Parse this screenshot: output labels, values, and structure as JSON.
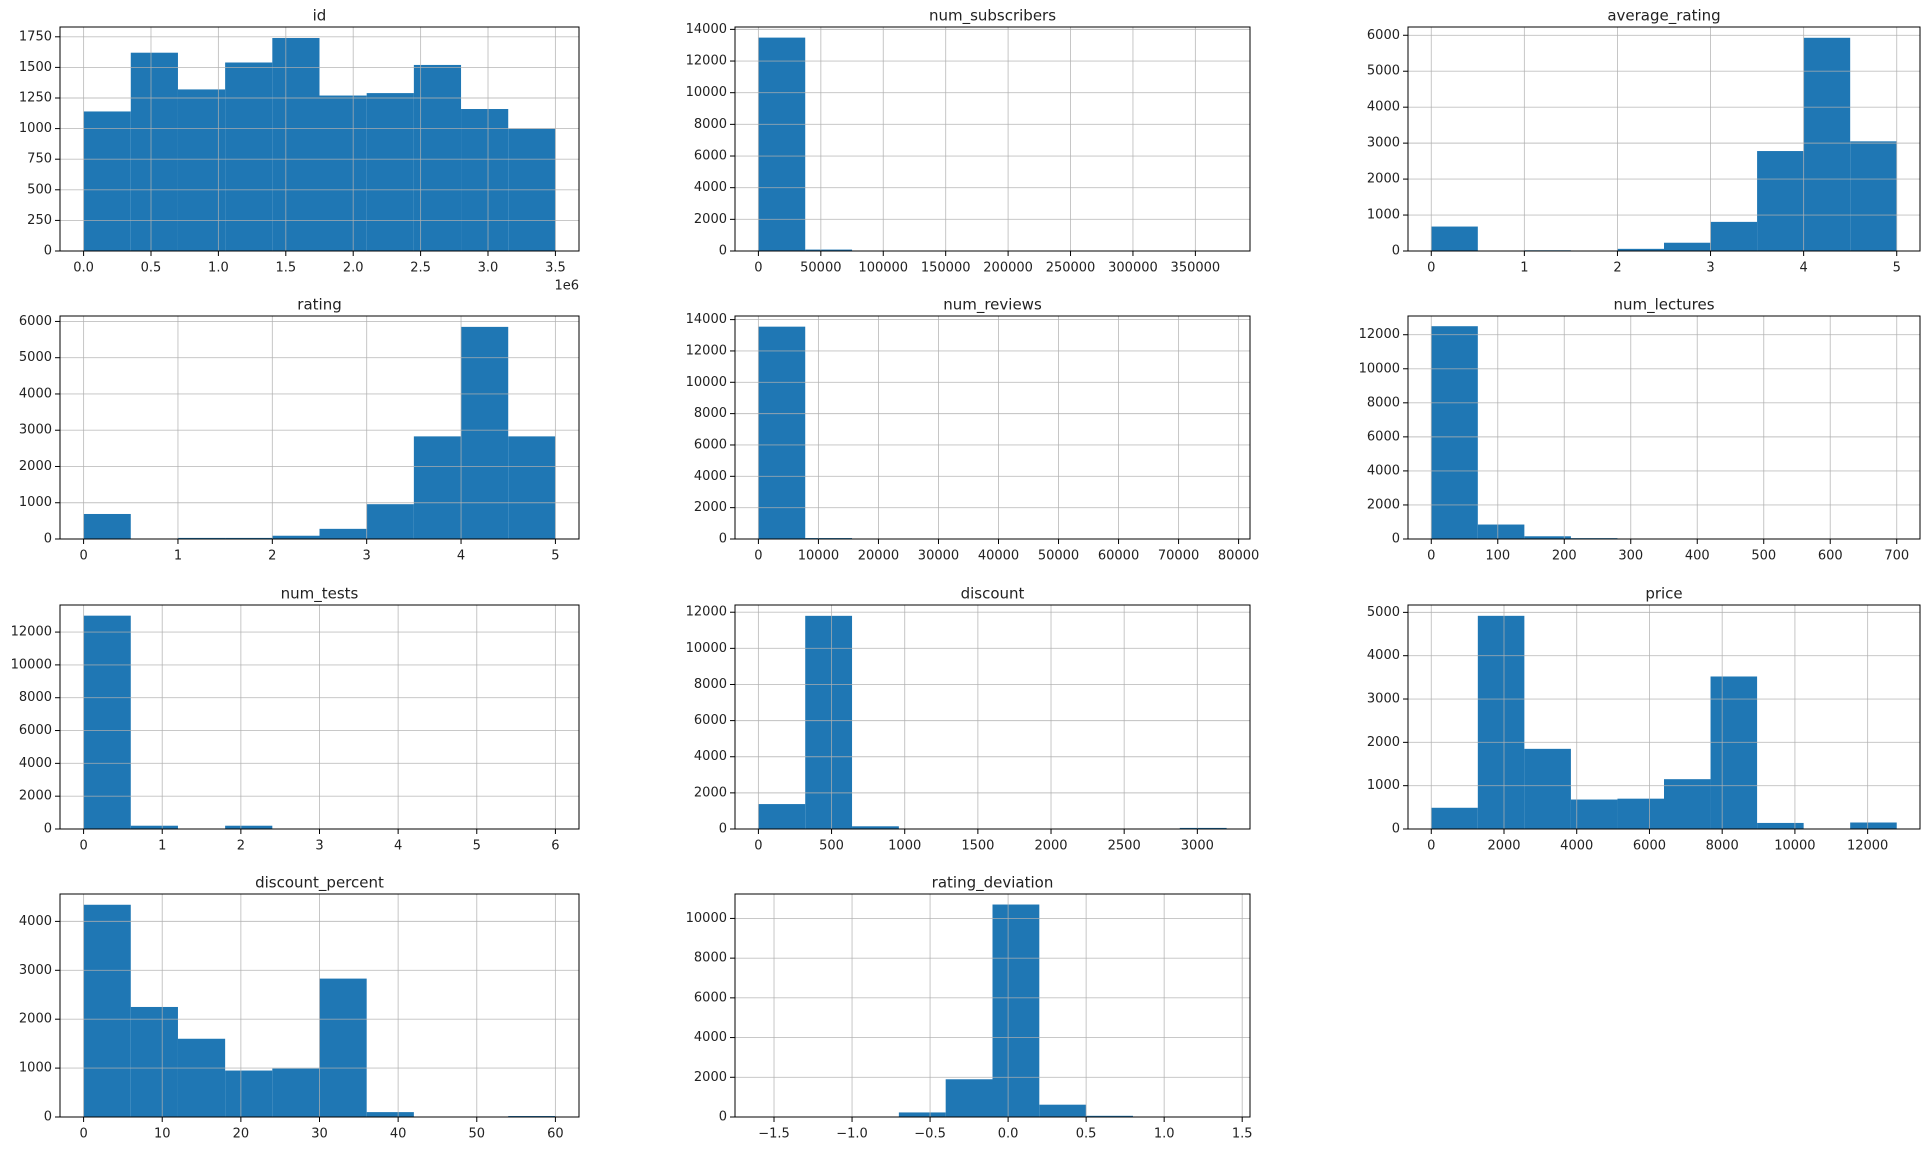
{
  "chart_data": [
    {
      "type": "histogram",
      "title": "id",
      "bins": [
        0,
        350000,
        700000,
        1050000,
        1400000,
        1750000,
        2100000,
        2450000,
        2800000,
        3150000,
        3500000
      ],
      "values": [
        1140,
        1620,
        1320,
        1540,
        1740,
        1270,
        1290,
        1520,
        1160,
        1000
      ],
      "color": "#1f77b4",
      "xlim": [
        -175000,
        3675000
      ],
      "ylim": [
        0,
        1830
      ],
      "xticks": [
        {
          "value": 0,
          "label": "0.0"
        },
        {
          "value": 500000,
          "label": "0.5"
        },
        {
          "value": 1000000,
          "label": "1.0"
        },
        {
          "value": 1500000,
          "label": "1.5"
        },
        {
          "value": 2000000,
          "label": "2.0"
        },
        {
          "value": 2500000,
          "label": "2.5"
        },
        {
          "value": 3000000,
          "label": "3.0"
        },
        {
          "value": 3500000,
          "label": "3.5"
        }
      ],
      "x_offset_label": "1e6",
      "yticks": [
        0,
        250,
        500,
        750,
        1000,
        1250,
        1500,
        1750
      ],
      "grid": true
    },
    {
      "type": "histogram",
      "title": "num_subscribers",
      "bins": [
        0,
        37500,
        75000,
        112500,
        150000,
        187500,
        225000,
        262500,
        300000,
        337500,
        375000
      ],
      "values": [
        13480,
        90,
        25,
        10,
        5,
        3,
        2,
        1,
        0,
        2
      ],
      "color": "#1f77b4",
      "xlim": [
        -18750,
        393750
      ],
      "ylim": [
        0,
        14150
      ],
      "xticks": [
        0,
        50000,
        100000,
        150000,
        200000,
        250000,
        300000,
        350000
      ],
      "yticks": [
        0,
        2000,
        4000,
        6000,
        8000,
        10000,
        12000,
        14000
      ],
      "grid": true
    },
    {
      "type": "histogram",
      "title": "average_rating",
      "bins": [
        0,
        0.5,
        1,
        1.5,
        2,
        2.5,
        3,
        3.5,
        4,
        4.5,
        5
      ],
      "values": [
        680,
        5,
        20,
        10,
        60,
        230,
        810,
        2780,
        5930,
        3050
      ],
      "color": "#1f77b4",
      "xlim": [
        -0.25,
        5.25
      ],
      "ylim": [
        0,
        6230
      ],
      "xticks": [
        0,
        1,
        2,
        3,
        4,
        5
      ],
      "yticks": [
        0,
        1000,
        2000,
        3000,
        4000,
        5000,
        6000
      ],
      "grid": true
    },
    {
      "type": "histogram",
      "title": "rating",
      "bins": [
        0,
        0.5,
        1,
        1.5,
        2,
        2.5,
        3,
        3.5,
        4,
        4.5,
        5
      ],
      "values": [
        690,
        5,
        30,
        30,
        90,
        280,
        960,
        2830,
        5850,
        2830
      ],
      "color": "#1f77b4",
      "xlim": [
        -0.25,
        5.25
      ],
      "ylim": [
        0,
        6150
      ],
      "xticks": [
        0,
        1,
        2,
        3,
        4,
        5
      ],
      "yticks": [
        0,
        1000,
        2000,
        3000,
        4000,
        5000,
        6000
      ],
      "grid": true
    },
    {
      "type": "histogram",
      "title": "num_reviews",
      "bins": [
        0,
        7800,
        15600,
        23400,
        31200,
        39000,
        46800,
        54600,
        62400,
        70200,
        78000
      ],
      "values": [
        13550,
        60,
        15,
        6,
        3,
        2,
        1,
        0,
        0,
        1
      ],
      "color": "#1f77b4",
      "xlim": [
        -3900,
        81900
      ],
      "ylim": [
        0,
        14230
      ],
      "xticks": [
        0,
        10000,
        20000,
        30000,
        40000,
        50000,
        60000,
        70000,
        80000
      ],
      "yticks": [
        0,
        2000,
        4000,
        6000,
        8000,
        10000,
        12000,
        14000
      ],
      "grid": true
    },
    {
      "type": "histogram",
      "title": "num_lectures",
      "bins": [
        0,
        70,
        140,
        210,
        280,
        350,
        420,
        490,
        560,
        630,
        700
      ],
      "values": [
        12500,
        850,
        160,
        50,
        15,
        8,
        5,
        2,
        1,
        2
      ],
      "color": "#1f77b4",
      "xlim": [
        -35,
        735
      ],
      "ylim": [
        0,
        13100
      ],
      "xticks": [
        0,
        100,
        200,
        300,
        400,
        500,
        600,
        700
      ],
      "yticks": [
        0,
        2000,
        4000,
        6000,
        8000,
        10000,
        12000
      ],
      "grid": true
    },
    {
      "type": "histogram",
      "title": "num_tests",
      "bins": [
        0,
        0.6,
        1.2,
        1.8,
        2.4,
        3,
        3.6,
        4.2,
        4.8,
        5.4,
        6
      ],
      "values": [
        13000,
        200,
        0,
        200,
        0,
        10,
        0,
        5,
        0,
        30
      ],
      "color": "#1f77b4",
      "xlim": [
        -0.3,
        6.3
      ],
      "ylim": [
        0,
        13650
      ],
      "xticks": [
        0,
        1,
        2,
        3,
        4,
        5,
        6
      ],
      "yticks": [
        0,
        2000,
        4000,
        6000,
        8000,
        10000,
        12000
      ],
      "grid": true
    },
    {
      "type": "histogram",
      "title": "discount",
      "bins": [
        0,
        320,
        640,
        960,
        1280,
        1600,
        1920,
        2240,
        2560,
        2880,
        3200
      ],
      "values": [
        1380,
        11800,
        150,
        20,
        10,
        5,
        3,
        2,
        1,
        60
      ],
      "color": "#1f77b4",
      "xlim": [
        -160,
        3360
      ],
      "ylim": [
        0,
        12400
      ],
      "xticks": [
        0,
        500,
        1000,
        1500,
        2000,
        2500,
        3000
      ],
      "yticks": [
        0,
        2000,
        4000,
        6000,
        8000,
        10000,
        12000
      ],
      "grid": true
    },
    {
      "type": "histogram",
      "title": "price",
      "bins": [
        0,
        1280,
        2560,
        3840,
        5120,
        6400,
        7680,
        8960,
        10240,
        11520,
        12800
      ],
      "values": [
        490,
        4920,
        1850,
        680,
        700,
        1150,
        3520,
        140,
        0,
        150
      ],
      "color": "#1f77b4",
      "xlim": [
        -640,
        13440
      ],
      "ylim": [
        0,
        5170
      ],
      "xticks": [
        0,
        2000,
        4000,
        6000,
        8000,
        10000,
        12000
      ],
      "yticks": [
        0,
        1000,
        2000,
        3000,
        4000,
        5000
      ],
      "grid": true
    },
    {
      "type": "histogram",
      "title": "discount_percent",
      "bins": [
        0,
        6,
        12,
        18,
        24,
        30,
        36,
        42,
        48,
        54,
        60
      ],
      "values": [
        4340,
        2250,
        1600,
        950,
        990,
        2830,
        100,
        0,
        0,
        20
      ],
      "color": "#1f77b4",
      "xlim": [
        -3,
        63
      ],
      "ylim": [
        0,
        4560
      ],
      "xticks": [
        0,
        10,
        20,
        30,
        40,
        50,
        60
      ],
      "yticks": [
        0,
        1000,
        2000,
        3000,
        4000
      ],
      "grid": true
    },
    {
      "type": "histogram",
      "title": "rating_deviation",
      "bins": [
        -1.6,
        -1.3,
        -1,
        -0.7,
        -0.4,
        -0.1,
        0.2,
        0.5,
        0.8,
        1.1,
        1.4
      ],
      "values": [
        1,
        2,
        10,
        230,
        1900,
        10700,
        620,
        60,
        5,
        2
      ],
      "color": "#1f77b4",
      "xlim": [
        -1.75,
        1.55
      ],
      "ylim": [
        0,
        11230
      ],
      "xticks": [
        {
          "value": -1.5,
          "label": "−1.5"
        },
        {
          "value": -1,
          "label": "−1.0"
        },
        {
          "value": -0.5,
          "label": "−0.5"
        },
        {
          "value": 0,
          "label": "0.0"
        },
        0.5,
        {
          "value": 1,
          "label": "1.0"
        },
        1.5
      ],
      "yticks": [
        0,
        2000,
        4000,
        6000,
        8000,
        10000
      ],
      "grid": true
    }
  ]
}
